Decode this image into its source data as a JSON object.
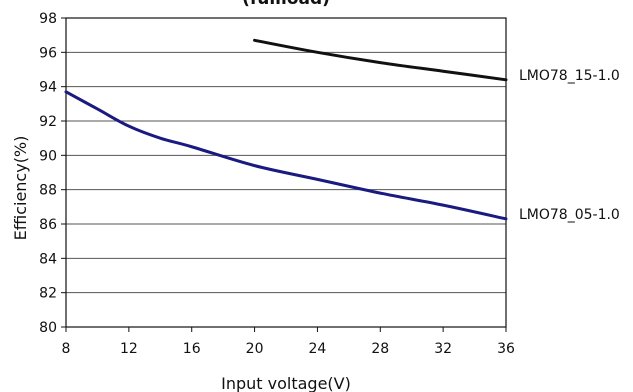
{
  "chart_data": {
    "type": "line",
    "title": "(fullload)",
    "xlabel": "Input voltage(V)",
    "ylabel": "Efficiency(%)",
    "xlim": [
      8,
      36
    ],
    "ylim": [
      80,
      98
    ],
    "xticks": [
      8,
      12,
      16,
      20,
      24,
      28,
      32,
      36
    ],
    "yticks": [
      80,
      82,
      84,
      86,
      88,
      90,
      92,
      94,
      96,
      98
    ],
    "grid": "y",
    "legend": "inline-right",
    "series": [
      {
        "name": "LMO78_15-1.0",
        "color": "#111111",
        "x": [
          20,
          24,
          28,
          32,
          36
        ],
        "y": [
          96.7,
          96.0,
          95.4,
          94.9,
          94.4
        ]
      },
      {
        "name": "LMO78_05-1.0",
        "color": "#1a1a80",
        "x": [
          8,
          10,
          12,
          14,
          16,
          20,
          24,
          28,
          32,
          36
        ],
        "y": [
          93.7,
          92.7,
          91.7,
          91.0,
          90.5,
          89.4,
          88.6,
          87.8,
          87.1,
          86.3
        ]
      }
    ]
  }
}
